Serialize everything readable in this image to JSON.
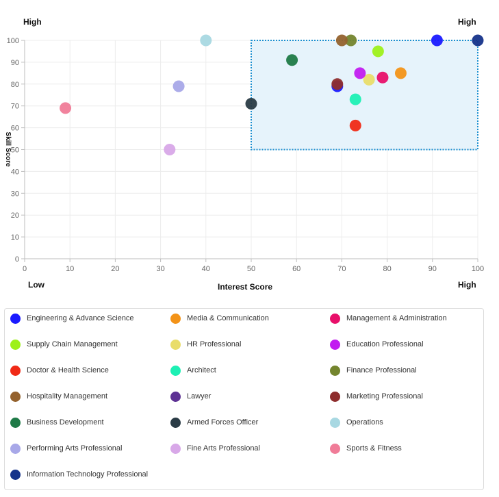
{
  "chart_data": {
    "type": "scatter",
    "title": "",
    "xlabel": "Interest Score",
    "ylabel": "Skill Score",
    "xlim": [
      0,
      100
    ],
    "ylim": [
      0,
      100
    ],
    "xticks": [
      0,
      10,
      20,
      30,
      40,
      50,
      60,
      70,
      80,
      90,
      100
    ],
    "yticks": [
      0,
      10,
      20,
      30,
      40,
      50,
      60,
      70,
      80,
      90,
      100
    ],
    "grid": true,
    "corner_labels": {
      "top_left": "High",
      "top_right": "High",
      "bottom_left": "Low",
      "bottom_right": "High"
    },
    "highlight_region": {
      "x": [
        50,
        100
      ],
      "y": [
        50,
        100
      ],
      "fill": "#e6f3fb",
      "stroke": "#1a8fd0"
    },
    "series": [
      {
        "name": "Engineering & Advance Science",
        "color": "#1a1aff",
        "points": [
          [
            69,
            79
          ],
          [
            91,
            100
          ]
        ]
      },
      {
        "name": "Media & Communication",
        "color": "#f39318",
        "points": [
          [
            83,
            85
          ]
        ]
      },
      {
        "name": "Management & Administration",
        "color": "#e8106a",
        "points": [
          [
            79,
            83
          ]
        ]
      },
      {
        "name": "Supply Chain Management",
        "color": "#9ef01a",
        "points": [
          [
            78,
            95
          ]
        ]
      },
      {
        "name": "HR Professional",
        "color": "#e9dd6a",
        "points": [
          [
            76,
            82
          ]
        ]
      },
      {
        "name": "Education Professional",
        "color": "#c21cf0",
        "points": [
          [
            74,
            85
          ]
        ]
      },
      {
        "name": "Doctor & Health Science",
        "color": "#f02a16",
        "points": [
          [
            73,
            61
          ]
        ]
      },
      {
        "name": "Architect",
        "color": "#1df0b4",
        "points": [
          [
            73,
            73
          ]
        ]
      },
      {
        "name": "Finance Professional",
        "color": "#74852e",
        "points": [
          [
            72,
            100
          ]
        ]
      },
      {
        "name": "Hospitality Management",
        "color": "#94622e",
        "points": [
          [
            70,
            100
          ]
        ]
      },
      {
        "name": "Lawyer",
        "color": "#5e3294",
        "points": []
      },
      {
        "name": "Marketing Professional",
        "color": "#8e2d2d",
        "points": [
          [
            69,
            80
          ]
        ]
      },
      {
        "name": "Business Development",
        "color": "#1f7a47",
        "points": [
          [
            59,
            91
          ]
        ]
      },
      {
        "name": "Armed Forces Officer",
        "color": "#2a3b45",
        "points": [
          [
            50,
            71
          ]
        ]
      },
      {
        "name": "Operations",
        "color": "#a8d8e2",
        "points": [
          [
            40,
            100
          ]
        ]
      },
      {
        "name": "Performing Arts Professional",
        "color": "#a8a8e8",
        "points": [
          [
            34,
            79
          ]
        ]
      },
      {
        "name": "Fine Arts Professional",
        "color": "#d8a8e8",
        "points": [
          [
            32,
            50
          ]
        ]
      },
      {
        "name": "Sports & Fitness",
        "color": "#f07c98",
        "points": [
          [
            9,
            69
          ]
        ]
      },
      {
        "name": "Information Technology Professional",
        "color": "#16338a",
        "points": [
          [
            100,
            100
          ]
        ]
      }
    ]
  }
}
